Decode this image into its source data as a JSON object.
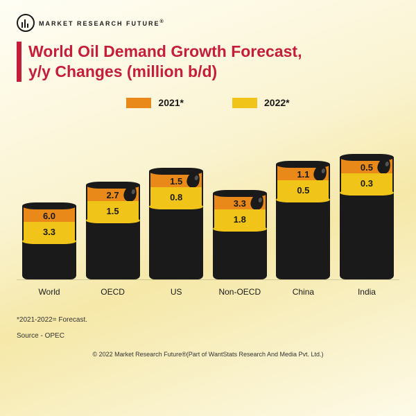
{
  "brand": {
    "name": "MARKET RESEARCH FUTURE",
    "registered": "®"
  },
  "title": {
    "line1": "World Oil Demand Growth Forecast,",
    "line2": "y/y Changes (million b/d)",
    "color": "#c41e3a"
  },
  "legend": {
    "items": [
      {
        "label": "2021*",
        "color": "#e8891a"
      },
      {
        "label": "2022*",
        "color": "#f0c419"
      }
    ]
  },
  "chart": {
    "fill_color": "#1a1a1a",
    "max_value": 9.3,
    "band_height": 28,
    "barrel_width": 78,
    "items": [
      {
        "label": "World",
        "v2021": "6.0",
        "v2022": "3.3",
        "body_h": 60,
        "has_drip": false
      },
      {
        "label": "OECD",
        "v2021": "2.7",
        "v2022": "1.5",
        "body_h": 90,
        "has_drip": true
      },
      {
        "label": "US",
        "v2021": "1.5",
        "v2022": "0.8",
        "body_h": 110,
        "has_drip": true
      },
      {
        "label": "Non-OECD",
        "v2021": "3.3",
        "v2022": "1.8",
        "body_h": 78,
        "has_drip": true
      },
      {
        "label": "China",
        "v2021": "1.1",
        "v2022": "0.5",
        "body_h": 120,
        "has_drip": true
      },
      {
        "label": "India",
        "v2021": "0.5",
        "v2022": "0.3",
        "body_h": 130,
        "has_drip": true
      }
    ]
  },
  "footnote": "*2021-2022= Forecast.",
  "source": "Source - OPEC",
  "copyright": "© 2022 Market Research Future®(Part of WantStats Research And Media Pvt. Ltd.)"
}
